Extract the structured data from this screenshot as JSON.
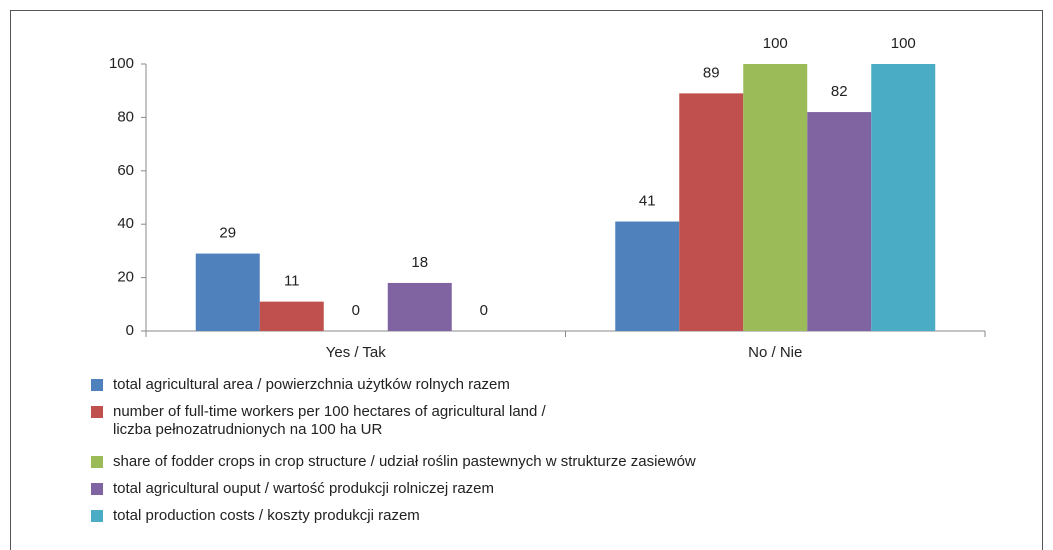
{
  "chart_data": {
    "type": "bar",
    "categories": [
      "Yes / Tak",
      "No / Nie"
    ],
    "series": [
      {
        "name": "total agricultural area / powierzchnia użytków rolnych razem",
        "color": "#4f81bd",
        "values": [
          29,
          41
        ]
      },
      {
        "name": "number of full-time workers per 100 hectares of agricultural land /\nliczba pełnozatrudnionych na 100 ha UR",
        "color": "#c0504d",
        "values": [
          11,
          89
        ]
      },
      {
        "name": "share of fodder crops in crop structure / udział roślin pastewnych w strukturze zasiewów",
        "color": "#9bbb59",
        "values": [
          0,
          100
        ]
      },
      {
        "name": "total agricultural ouput / wartość produkcji rolniczej razem",
        "color": "#8064a2",
        "values": [
          18,
          82
        ]
      },
      {
        "name": "total production costs / koszty produkcji razem",
        "color": "#4bacc6",
        "values": [
          0,
          100
        ]
      }
    ],
    "ylim": [
      0,
      100
    ],
    "yticks": [
      0,
      20,
      40,
      60,
      80,
      100
    ],
    "grid": false,
    "legend": "bottom"
  }
}
